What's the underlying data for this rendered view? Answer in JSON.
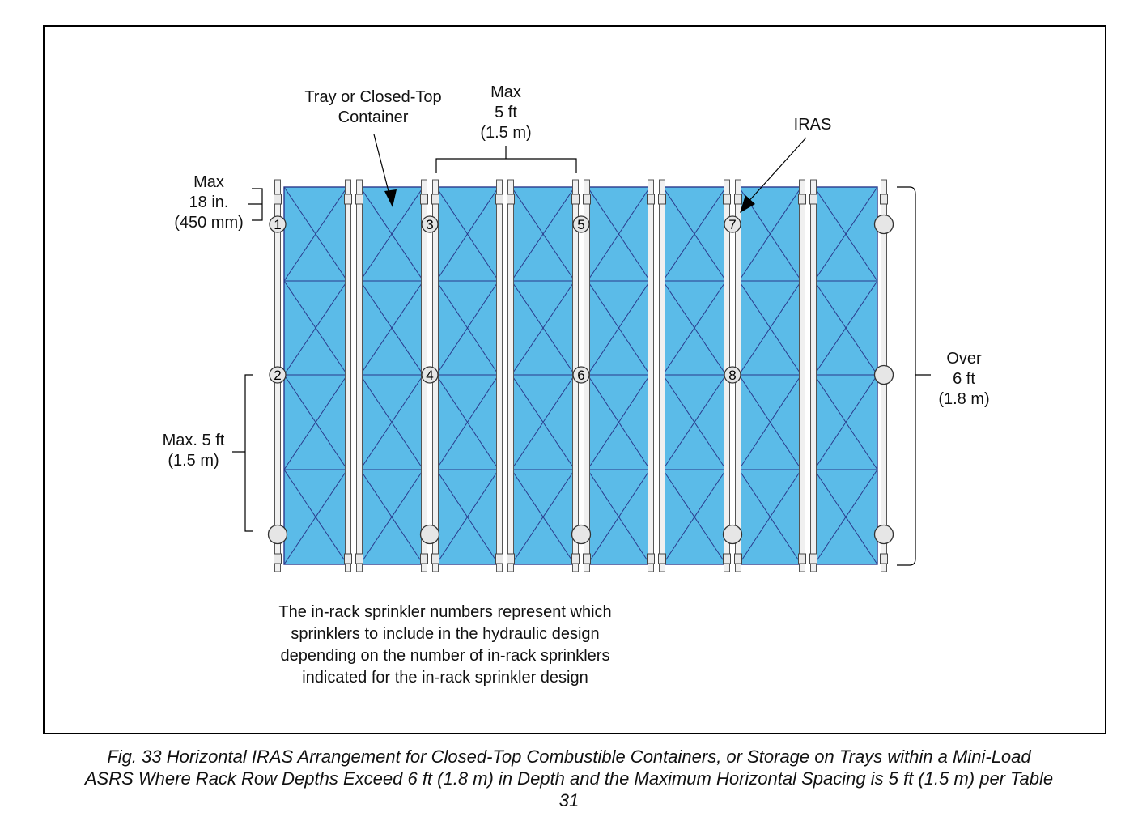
{
  "labels": {
    "tray": [
      "Tray or Closed-Top",
      "Container"
    ],
    "max_top": [
      "Max",
      "5 ft",
      "(1.5 m)"
    ],
    "iras": "IRAS",
    "max_left": [
      "Max",
      "18 in.",
      "(450 mm)"
    ],
    "max_side": [
      "Max. 5 ft",
      "(1.5 m)"
    ],
    "over": [
      "Over",
      "6 ft",
      "(1.8 m)"
    ]
  },
  "note": [
    "The in-rack sprinkler numbers represent which",
    "sprinklers to include in the hydraulic design",
    "depending on the number of in-rack sprinklers",
    "indicated for the in-rack sprinkler design"
  ],
  "caption": [
    "Fig. 33 Horizontal IRAS Arrangement for Closed-Top Combustible Containers, or Storage on Trays within a Mini-Load",
    "ASRS Where Rack Row Depths Exceed 6 ft (1.8 m) in Depth and the Maximum Horizontal Spacing is 5 ft (1.5 m) per Table",
    "31"
  ],
  "sprinklers": [
    {
      "col": 0,
      "row": "top",
      "label": "1"
    },
    {
      "col": 0,
      "row": "mid",
      "label": "2"
    },
    {
      "col": 0,
      "row": "bottom",
      "label": ""
    },
    {
      "col": 2,
      "row": "top",
      "label": "3"
    },
    {
      "col": 2,
      "row": "mid",
      "label": "4"
    },
    {
      "col": 2,
      "row": "bottom",
      "label": ""
    },
    {
      "col": 4,
      "row": "top",
      "label": "5"
    },
    {
      "col": 4,
      "row": "mid",
      "label": "6"
    },
    {
      "col": 4,
      "row": "bottom",
      "label": ""
    },
    {
      "col": 6,
      "row": "top",
      "label": "7"
    },
    {
      "col": 6,
      "row": "mid",
      "label": "8"
    },
    {
      "col": 6,
      "row": "bottom",
      "label": ""
    },
    {
      "col": 8,
      "row": "top",
      "label": ""
    },
    {
      "col": 8,
      "row": "mid",
      "label": ""
    },
    {
      "col": 8,
      "row": "bottom",
      "label": ""
    }
  ],
  "colors": {
    "container_fill": "#5bbbe8",
    "container_stroke": "#2a3a8c",
    "upright_fill": "#f0f0f0",
    "sprinkler_fill": "#e6e6e6",
    "line": "#000000"
  }
}
